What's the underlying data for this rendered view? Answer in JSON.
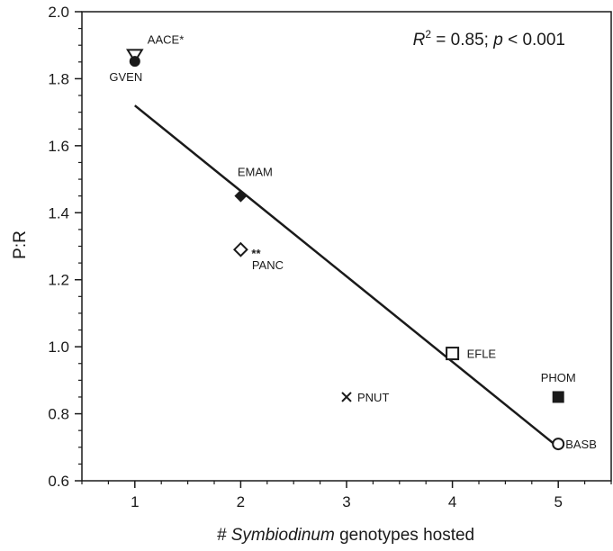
{
  "chart_data": {
    "type": "scatter",
    "xlabel_prefix": "#",
    "xlabel_italic": "Symbiodinum",
    "xlabel_suffix": "genotypes hosted",
    "ylabel": "P:R",
    "xlim": [
      0.5,
      5.5
    ],
    "ylim": [
      0.6,
      2.0
    ],
    "x_ticks": [
      1,
      2,
      3,
      4,
      5
    ],
    "y_ticks": [
      0.6,
      0.8,
      1.0,
      1.2,
      1.4,
      1.6,
      1.8,
      2.0
    ],
    "y_tick_labels": [
      "0.6",
      "0.8",
      "1.0",
      "1.2",
      "1.4",
      "1.6",
      "1.8",
      "2.0"
    ],
    "x_tick_labels": [
      "1",
      "2",
      "3",
      "4",
      "5"
    ],
    "stats": {
      "r_symbol": "R",
      "r_exp": "2",
      "r_value": " = 0.85; ",
      "p_symbol": "p",
      "p_value": " < 0.001"
    },
    "grid": false,
    "legend": "none",
    "points": [
      {
        "label": "AACE*",
        "x": 1,
        "y": 1.87,
        "marker": "triangle-down-open"
      },
      {
        "label": "GVEN",
        "x": 1,
        "y": 1.86,
        "marker": "circle-filled"
      },
      {
        "label": "EMAM",
        "x": 2,
        "y": 1.45,
        "marker": "diamond-filled"
      },
      {
        "label": "PANC",
        "x": 2,
        "y": 1.29,
        "marker": "diamond-open",
        "annotation": "**"
      },
      {
        "label": "PNUT",
        "x": 3,
        "y": 0.85,
        "marker": "cross"
      },
      {
        "label": "EFLE",
        "x": 4,
        "y": 0.98,
        "marker": "square-open"
      },
      {
        "label": "PHOM",
        "x": 5,
        "y": 0.85,
        "marker": "square-filled"
      },
      {
        "label": "BASB",
        "x": 5,
        "y": 0.71,
        "marker": "circle-open"
      }
    ],
    "regression_line": {
      "x": [
        1,
        5
      ],
      "y": [
        1.72,
        0.7
      ]
    }
  }
}
